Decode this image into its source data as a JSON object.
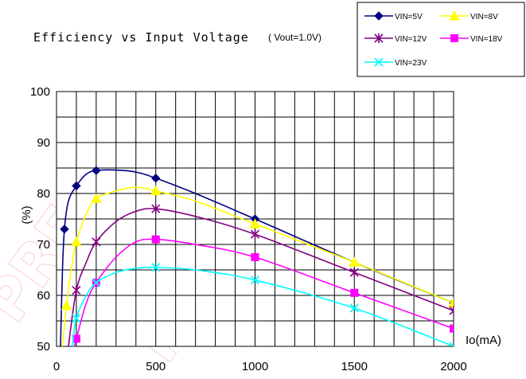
{
  "chart_data": {
    "type": "line",
    "title": "Efficiency vs Input Voltage",
    "subtitle": "( Vout=1.0V)",
    "xlabel": "Io(mA)",
    "ylabel": "(%)",
    "xlim": [
      0,
      2000
    ],
    "ylim": [
      50,
      100
    ],
    "x_ticks": [
      0,
      500,
      1000,
      1500,
      2000
    ],
    "y_ticks": [
      50,
      60,
      70,
      80,
      90,
      100
    ],
    "grid": true,
    "legend_position": "top-right",
    "series": [
      {
        "name": "VIN=5V",
        "color": "#000080",
        "marker": "diamond",
        "x": [
          40,
          100,
          200,
          500,
          1000,
          2000
        ],
        "y": [
          73,
          81.5,
          84.5,
          83,
          75,
          58.5
        ],
        "curve_x": [
          20,
          30,
          40,
          60,
          100,
          150,
          200,
          300,
          400,
          500,
          700,
          1000,
          1500,
          2000
        ],
        "curve_y": [
          50,
          65,
          73,
          78.5,
          81.5,
          83.8,
          84.5,
          84.6,
          84.2,
          83,
          80,
          75,
          66.5,
          58.5
        ]
      },
      {
        "name": "VIN=8V",
        "color": "#ffff00",
        "marker": "triangle",
        "x": [
          50,
          100,
          200,
          500,
          1000,
          1500,
          2000
        ],
        "y": [
          58,
          70.5,
          79,
          80.5,
          74,
          66.5,
          58.5
        ],
        "curve_x": [
          30,
          50,
          80,
          100,
          150,
          200,
          300,
          400,
          500,
          700,
          1000,
          1500,
          2000
        ],
        "curve_y": [
          50,
          58,
          66.5,
          70.5,
          76,
          79,
          80.5,
          81.2,
          80.5,
          78.5,
          74,
          66.5,
          58.5
        ]
      },
      {
        "name": "VIN=12V",
        "color": "#800080",
        "marker": "star",
        "x": [
          100,
          200,
          500,
          1000,
          1500,
          2000
        ],
        "y": [
          61,
          70.5,
          77,
          72,
          64.5,
          57
        ],
        "curve_x": [
          60,
          100,
          150,
          200,
          300,
          400,
          500,
          700,
          1000,
          1500,
          2000
        ],
        "curve_y": [
          50,
          61,
          66.5,
          70.5,
          74.5,
          76.5,
          77,
          75.5,
          72,
          64.5,
          57
        ]
      },
      {
        "name": "VIN=18V",
        "color": "#ff00ff",
        "marker": "square",
        "x": [
          100,
          200,
          500,
          1000,
          1500,
          2000
        ],
        "y": [
          51.5,
          62.5,
          71,
          67.5,
          60.5,
          53.5
        ],
        "curve_x": [
          90,
          100,
          150,
          200,
          300,
          400,
          500,
          700,
          1000,
          1500,
          2000
        ],
        "curve_y": [
          50,
          51.5,
          58.5,
          62.5,
          67.5,
          70.5,
          71,
          70,
          67.5,
          60.5,
          53.5
        ]
      },
      {
        "name": "VIN=23V",
        "color": "#00ffff",
        "marker": "x",
        "x": [
          100,
          200,
          500,
          1000,
          1500,
          2000
        ],
        "y": [
          55.5,
          62.5,
          65.5,
          63,
          57.5,
          50
        ],
        "curve_x": [
          80,
          100,
          150,
          200,
          300,
          400,
          500,
          700,
          1000,
          1500,
          2000
        ],
        "curve_y": [
          50,
          55.5,
          60,
          62.5,
          64.5,
          65.3,
          65.5,
          65,
          63,
          57.5,
          50
        ]
      }
    ]
  }
}
